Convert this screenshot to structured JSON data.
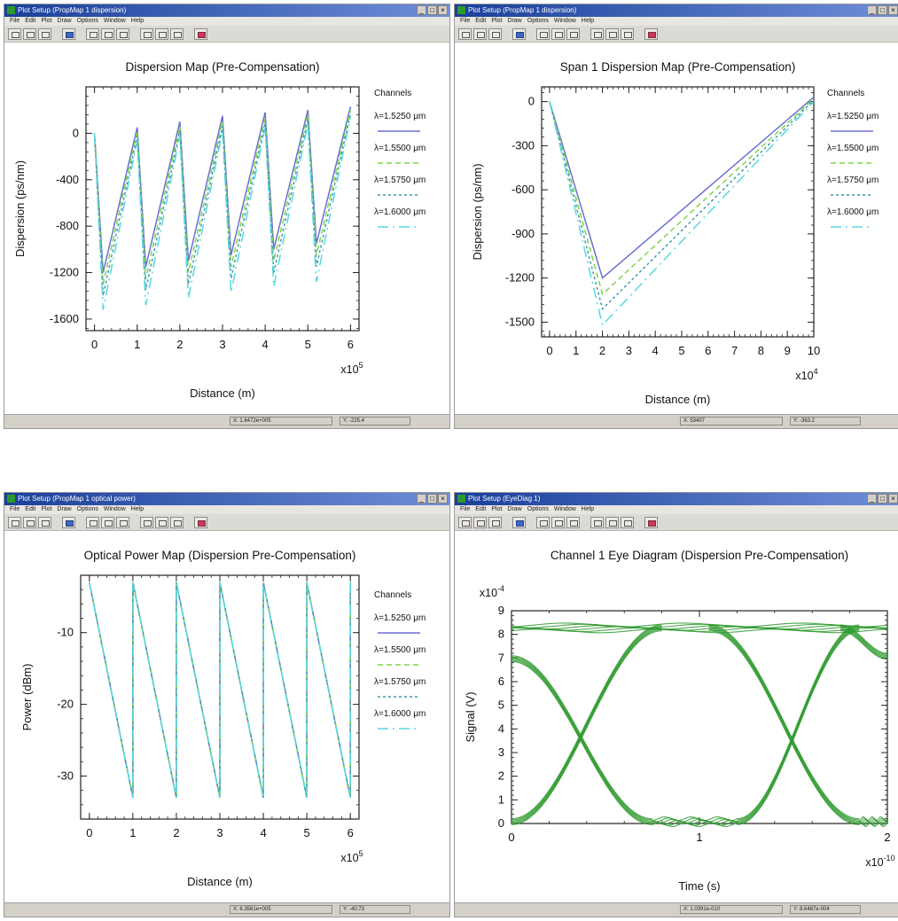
{
  "windows": [
    {
      "title": "Plot Setup (PropMap 1 dispersion)",
      "menu": [
        "File",
        "Edit",
        "Plot",
        "Draw",
        "Options",
        "Window",
        "Help"
      ],
      "status": {
        "x": "X: 1.6472e+005",
        "y": "Y: -225.4"
      }
    },
    {
      "title": "Plot Setup (PropMap 1 dispersion)",
      "menu": [
        "File",
        "Edit",
        "Plot",
        "Draw",
        "Options",
        "Window",
        "Help"
      ],
      "status": {
        "x": "X: 53407",
        "y": "Y: -363.2"
      }
    },
    {
      "title": "Plot Setup (PropMap 1 optical power)",
      "menu": [
        "File",
        "Edit",
        "Plot",
        "Draw",
        "Options",
        "Window",
        "Help"
      ],
      "status": {
        "x": "X: 6.3561e+005",
        "y": "Y: -40.73"
      }
    },
    {
      "title": "Plot Setup (EyeDiag 1)",
      "menu": [
        "File",
        "Edit",
        "Plot",
        "Draw",
        "Options",
        "Window",
        "Help"
      ],
      "status": {
        "x": "X: 1.0391e-010",
        "y": "Y: 8.6487e-004"
      }
    }
  ],
  "legend": {
    "heading": "Channels",
    "entries": [
      "λ=1.5250 μm",
      "λ=1.5500 μm",
      "λ=1.5750 μm",
      "λ=1.6000 μm"
    ]
  },
  "colors": {
    "ch1": "#6b6fd0",
    "ch2": "#7fd44a",
    "ch3": "#3f9aa8",
    "ch4": "#56d8e0",
    "eye": "#2f9a2f"
  },
  "chart_data": [
    {
      "type": "line",
      "title": "Dispersion Map (Pre-Compensation)",
      "xlabel": "Distance (m)",
      "ylabel": "Dispersion (ps/nm)",
      "x_multiplier": "x10",
      "x_exponent": "5",
      "xlim": [
        -0.2,
        6.2
      ],
      "ylim": [
        -1700,
        400
      ],
      "xticks": [
        0,
        1,
        2,
        3,
        4,
        5,
        6
      ],
      "yticks": [
        0,
        -400,
        -800,
        -1200,
        -1600
      ],
      "series": [
        {
          "name": "λ=1.5250 μm",
          "x": [
            0,
            0.2,
            1,
            1.2,
            2,
            2.2,
            3,
            3.2,
            4,
            4.2,
            5,
            5.2,
            6
          ],
          "y": [
            0,
            -1200,
            50,
            -1150,
            100,
            -1100,
            150,
            -1050,
            180,
            -1000,
            200,
            -950,
            230
          ]
        },
        {
          "name": "λ=1.5500 μm",
          "x": [
            0,
            0.2,
            1,
            1.2,
            2,
            2.2,
            3,
            3.2,
            4,
            4.2,
            5,
            5.2,
            6
          ],
          "y": [
            0,
            -1300,
            20,
            -1250,
            60,
            -1200,
            100,
            -1150,
            130,
            -1100,
            160,
            -1050,
            200
          ]
        },
        {
          "name": "λ=1.5750 μm",
          "x": [
            0,
            0.2,
            1,
            1.2,
            2,
            2.2,
            3,
            3.2,
            4,
            4.2,
            5,
            5.2,
            6
          ],
          "y": [
            0,
            -1400,
            -20,
            -1350,
            20,
            -1300,
            60,
            -1250,
            90,
            -1200,
            120,
            -1150,
            170
          ]
        },
        {
          "name": "λ=1.6000 μm",
          "x": [
            0,
            0.2,
            1,
            1.2,
            2,
            2.2,
            3,
            3.2,
            4,
            4.2,
            5,
            5.2,
            6
          ],
          "y": [
            0,
            -1520,
            -60,
            -1480,
            -20,
            -1420,
            20,
            -1370,
            50,
            -1320,
            80,
            -1280,
            140
          ]
        }
      ]
    },
    {
      "type": "line",
      "title": "Span 1 Dispersion Map (Pre-Compensation)",
      "xlabel": "Distance (m)",
      "ylabel": "Dispersion (ps/nm)",
      "x_multiplier": "x10",
      "x_exponent": "4",
      "xlim": [
        -0.3,
        10
      ],
      "ylim": [
        -1600,
        100
      ],
      "xticks": [
        0,
        1,
        2,
        3,
        4,
        5,
        6,
        7,
        8,
        9,
        10
      ],
      "yticks": [
        0,
        -300,
        -600,
        -900,
        -1200,
        -1500
      ],
      "series": [
        {
          "name": "λ=1.5250 μm",
          "x": [
            0,
            2,
            10
          ],
          "y": [
            0,
            -1200,
            30
          ]
        },
        {
          "name": "λ=1.5500 μm",
          "x": [
            0,
            2,
            10
          ],
          "y": [
            0,
            -1310,
            20
          ]
        },
        {
          "name": "λ=1.5750 μm",
          "x": [
            0,
            2,
            10
          ],
          "y": [
            0,
            -1410,
            10
          ]
        },
        {
          "name": "λ=1.6000 μm",
          "x": [
            0,
            2,
            10
          ],
          "y": [
            0,
            -1520,
            0
          ]
        }
      ]
    },
    {
      "type": "line",
      "title": "Optical Power Map (Dispersion Pre-Compensation)",
      "xlabel": "Distance (m)",
      "ylabel": "Power (dBm)",
      "x_multiplier": "x10",
      "x_exponent": "5",
      "xlim": [
        -0.2,
        6.2
      ],
      "ylim": [
        -36,
        -2
      ],
      "xticks": [
        0,
        1,
        2,
        3,
        4,
        5,
        6
      ],
      "yticks": [
        -10,
        -20,
        -30
      ],
      "series": [
        {
          "name": "λ=1.5250 μm",
          "x": [
            0,
            1,
            1,
            2,
            2,
            3,
            3,
            4,
            4,
            5,
            5,
            6,
            6
          ],
          "y": [
            -3,
            -33,
            -3,
            -33,
            -3,
            -33,
            -3,
            -33,
            -3,
            -33,
            -3,
            -33,
            -3
          ]
        },
        {
          "name": "λ=1.5500 μm",
          "x": [
            0,
            1,
            1,
            2,
            2,
            3,
            3,
            4,
            4,
            5,
            5,
            6,
            6
          ],
          "y": [
            -3,
            -33,
            -3,
            -33,
            -3,
            -33,
            -3,
            -33,
            -3,
            -33,
            -3,
            -33,
            -3
          ]
        },
        {
          "name": "λ=1.5750 μm",
          "x": [
            0,
            1,
            1,
            2,
            2,
            3,
            3,
            4,
            4,
            5,
            5,
            6,
            6
          ],
          "y": [
            -3,
            -33,
            -3,
            -33,
            -3,
            -33,
            -3,
            -33,
            -3,
            -33,
            -3,
            -33,
            -3
          ]
        },
        {
          "name": "λ=1.6000 μm",
          "x": [
            0,
            1,
            1,
            2,
            2,
            3,
            3,
            4,
            4,
            5,
            5,
            6,
            6
          ],
          "y": [
            -3,
            -33,
            -3,
            -33,
            -3,
            -33,
            -3,
            -33,
            -3,
            -33,
            -3,
            -33,
            -3
          ]
        }
      ]
    },
    {
      "type": "line",
      "title": "Channel 1 Eye Diagram (Dispersion Pre-Compensation)",
      "xlabel": "Time (s)",
      "ylabel": "Signal (V)",
      "x_multiplier": "x10",
      "x_exponent": "-10",
      "y_multiplier": "x10",
      "y_exponent": "-4",
      "xlim": [
        0,
        2
      ],
      "ylim": [
        0,
        9
      ],
      "xticks": [
        0,
        1,
        2
      ],
      "yticks": [
        0,
        1,
        2,
        3,
        4,
        5,
        6,
        7,
        8,
        9
      ],
      "traces": [
        {
          "kind": "fall",
          "x": [
            0,
            0.75
          ],
          "y": [
            7.0,
            0.1
          ]
        },
        {
          "kind": "rise",
          "x": [
            0,
            0.8
          ],
          "y": [
            0.1,
            8.3
          ]
        },
        {
          "kind": "rise",
          "x": [
            1.2,
            1.85
          ],
          "y": [
            0.1,
            8.3
          ]
        },
        {
          "kind": "fall",
          "x": [
            1.05,
            1.85
          ],
          "y": [
            8.3,
            0.1
          ]
        },
        {
          "kind": "fall",
          "x": [
            1.75,
            2.0
          ],
          "y": [
            8.3,
            7.1
          ]
        },
        {
          "kind": "high",
          "x": [
            0,
            2
          ],
          "y": [
            8.3,
            8.3
          ]
        },
        {
          "kind": "low",
          "x": [
            0.75,
            1.2
          ],
          "y": [
            0.1,
            0.1
          ]
        },
        {
          "kind": "low",
          "x": [
            1.85,
            2.0
          ],
          "y": [
            0.1,
            0.1
          ]
        }
      ]
    }
  ]
}
